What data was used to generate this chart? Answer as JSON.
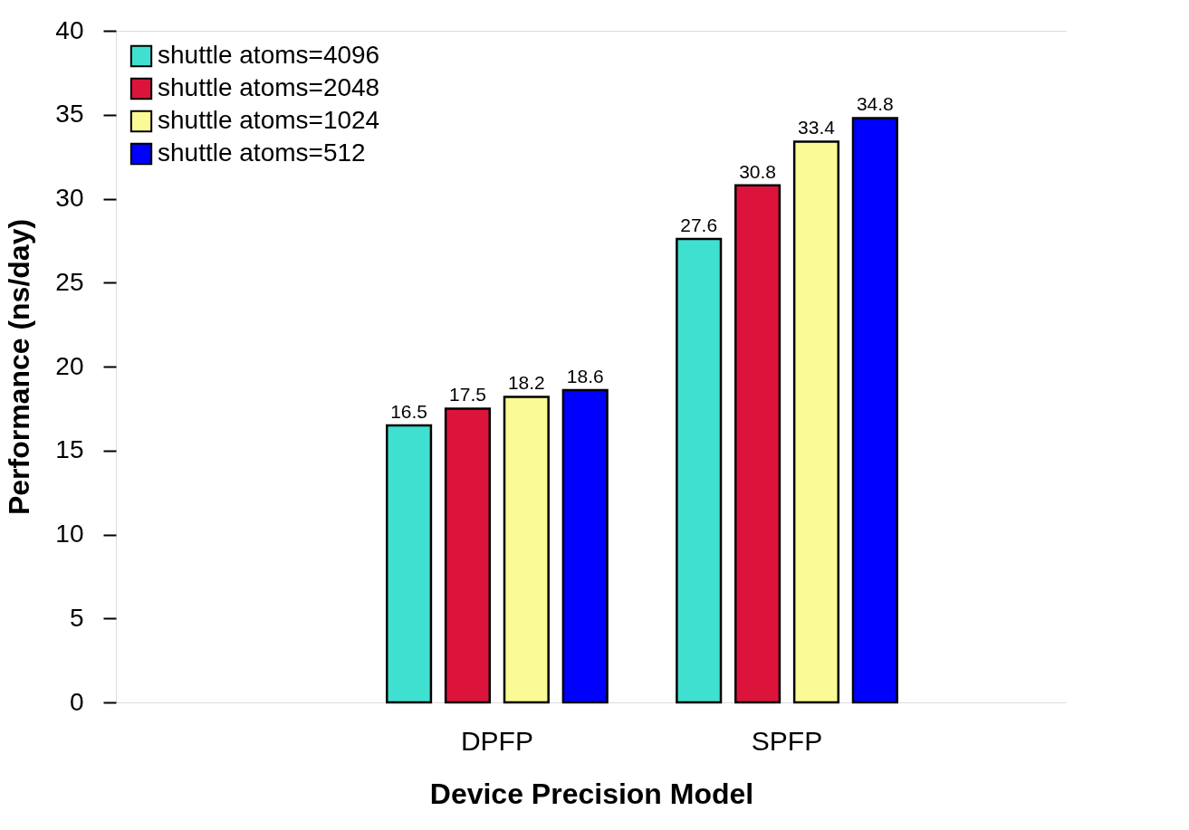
{
  "chart_data": {
    "type": "bar",
    "xlabel": "Device Precision Model",
    "ylabel": "Performance (ns/day)",
    "categories": [
      "DPFP",
      "SPFP"
    ],
    "series": [
      {
        "name": "shuttle atoms=4096",
        "color": "#40e0d0",
        "values": [
          16.5,
          27.6
        ]
      },
      {
        "name": "shuttle atoms=2048",
        "color": "#dc143c",
        "values": [
          17.5,
          30.8
        ]
      },
      {
        "name": "shuttle atoms=1024",
        "color": "#fafa96",
        "values": [
          18.2,
          33.4
        ]
      },
      {
        "name": "shuttle atoms=512",
        "color": "#0000ff",
        "values": [
          18.6,
          34.8
        ]
      }
    ],
    "ylim": [
      0,
      40
    ],
    "yticks": [
      0,
      5,
      10,
      15,
      20,
      25,
      30,
      35,
      40
    ],
    "data_labels": true,
    "legend": "top left",
    "grid": false
  }
}
